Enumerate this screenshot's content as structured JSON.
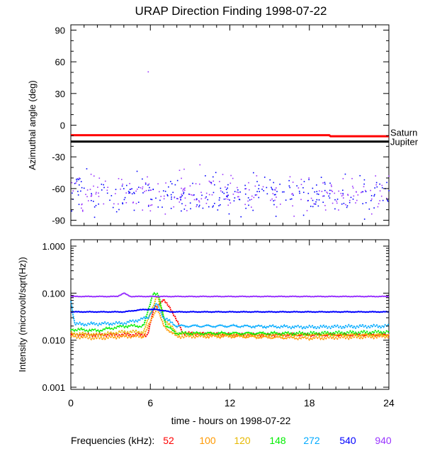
{
  "title": "URAP Direction Finding  1998-07-22",
  "top_panel": {
    "ylabel": "Azimuthal angle (deg)",
    "yticks": [
      90,
      60,
      30,
      0,
      -30,
      -60,
      -90
    ],
    "ylim": [
      -95,
      95
    ],
    "references": [
      {
        "name": "Saturn",
        "value": -9.5,
        "color": "#ff0000"
      },
      {
        "name": "Jupiter",
        "value": -15.5,
        "color": "#000000"
      }
    ]
  },
  "bottom_panel": {
    "ylabel": "Intensity (microvolt/sqrt(Hz))",
    "ytick_labels": [
      "1.000",
      "0.100",
      "0.010",
      "0.001"
    ],
    "ytick_values": [
      1.0,
      0.1,
      0.01,
      0.001
    ],
    "scale": "log"
  },
  "x_axis": {
    "label": "time - hours on 1998-07-22",
    "ticks": [
      0,
      6,
      12,
      18,
      24
    ],
    "xlim": [
      0,
      24
    ]
  },
  "legend": {
    "prefix": "Frequencies (kHz):",
    "items": [
      {
        "label": "52",
        "color": "#ff0000"
      },
      {
        "label": "100",
        "color": "#ff9900"
      },
      {
        "label": "120",
        "color": "#e6b800"
      },
      {
        "label": "148",
        "color": "#00ee00"
      },
      {
        "label": "272",
        "color": "#00aaff"
      },
      {
        "label": "540",
        "color": "#0000ff"
      },
      {
        "label": "940",
        "color": "#9933ff"
      }
    ]
  },
  "chart_data": [
    {
      "type": "scatter",
      "title": "URAP Direction Finding  1998-07-22",
      "xlabel": "",
      "ylabel": "Azimuthal angle (deg)",
      "xlim": [
        0,
        24
      ],
      "ylim": [
        -95,
        95
      ],
      "lines": [
        {
          "name": "Saturn",
          "x": [
            0,
            19.5,
            19.6,
            24
          ],
          "y": [
            -9.5,
            -9.5,
            -10.5,
            -10.5
          ],
          "color": "#ff0000"
        },
        {
          "name": "Jupiter",
          "x": [
            0,
            24
          ],
          "y": [
            -15.5,
            -15.5
          ],
          "color": "#000000"
        }
      ],
      "points": {
        "center": -64,
        "spread": 9,
        "colors": [
          "#0000ff",
          "#9933ff"
        ],
        "outliers": [
          {
            "x": 5.8,
            "y": 51
          },
          {
            "x": 9.7,
            "y": -37
          }
        ]
      }
    },
    {
      "type": "line",
      "xlabel": "time - hours on 1998-07-22",
      "ylabel": "Intensity (microvolt/sqrt(Hz))",
      "xlim": [
        0,
        24
      ],
      "yscale": "log",
      "ylim": [
        0.001,
        1.0
      ],
      "series": [
        {
          "name": "52",
          "color": "#ff0000",
          "x": [
            0,
            2,
            5.8,
            6.3,
            7.0,
            7.5,
            8.0,
            8.5,
            12,
            18,
            24
          ],
          "y": [
            0.013,
            0.013,
            0.013,
            0.05,
            0.07,
            0.05,
            0.025,
            0.014,
            0.013,
            0.013,
            0.013
          ]
        },
        {
          "name": "100",
          "color": "#ff9900",
          "x": [
            0,
            2,
            4,
            5.5,
            6.5,
            7.0,
            8.0,
            12,
            18,
            24
          ],
          "y": [
            0.012,
            0.011,
            0.012,
            0.012,
            0.05,
            0.02,
            0.012,
            0.012,
            0.011,
            0.012
          ]
        },
        {
          "name": "120",
          "color": "#e6b800",
          "x": [
            0,
            2,
            4,
            5.5,
            6.5,
            7.0,
            8.0,
            12,
            18,
            24
          ],
          "y": [
            0.014,
            0.013,
            0.015,
            0.015,
            0.09,
            0.03,
            0.014,
            0.013,
            0.013,
            0.013
          ]
        },
        {
          "name": "148",
          "color": "#00ee00",
          "x": [
            0,
            2,
            4,
            5.5,
            6.2,
            6.6,
            7.2,
            8.0,
            12,
            18,
            24
          ],
          "y": [
            0.017,
            0.016,
            0.02,
            0.02,
            0.1,
            0.09,
            0.02,
            0.014,
            0.014,
            0.014,
            0.015
          ]
        },
        {
          "name": "272",
          "color": "#00aaff",
          "x": [
            0,
            0.3,
            1,
            4,
            5.8,
            6.5,
            7.0,
            8.0,
            12,
            18,
            24
          ],
          "y": [
            0.07,
            0.022,
            0.022,
            0.023,
            0.03,
            0.06,
            0.03,
            0.02,
            0.02,
            0.019,
            0.02
          ]
        },
        {
          "name": "540",
          "color": "#0000ff",
          "x": [
            0,
            4,
            5.5,
            6.5,
            7.5,
            24
          ],
          "y": [
            0.04,
            0.04,
            0.045,
            0.045,
            0.04,
            0.04
          ]
        },
        {
          "name": "940",
          "color": "#9933ff",
          "x": [
            0,
            3.5,
            4.0,
            4.5,
            5.0,
            6.0,
            24
          ],
          "y": [
            0.085,
            0.085,
            0.1,
            0.085,
            0.085,
            0.085,
            0.085
          ]
        }
      ]
    }
  ]
}
